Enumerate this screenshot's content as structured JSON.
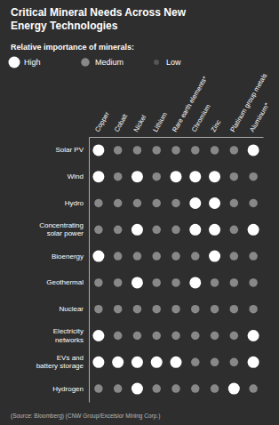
{
  "chart_data": {
    "type": "heatmap",
    "title": "Critical Mineral Needs Across New\nEnergy Technologies",
    "subtitle": "Relative importance of minerals:",
    "annotations": [
      "(Source: Bloomberg) (CNW Group/Excelsior Mining Corp.)"
    ],
    "x": [
      "Copper",
      "Cobalt",
      "Nickel",
      "Lithium",
      "Rare earth elements*",
      "Chromium",
      "Zinc",
      "Platinum group metals",
      "Aluminum*"
    ],
    "y": [
      "Solar PV",
      "Wind",
      "Hydro",
      "Concentrating\nsolar power",
      "Bioenergy",
      "Geothermal",
      "Nuclear",
      "Electricity\nnetworks",
      "EVs and\nbattery storage",
      "Hydrogen"
    ],
    "cells": [
      [
        2,
        1,
        1,
        1,
        1,
        1,
        1,
        1,
        2
      ],
      [
        2,
        1,
        2,
        1,
        2,
        2,
        2,
        1,
        1
      ],
      [
        1,
        1,
        1,
        1,
        1,
        2,
        2,
        1,
        1
      ],
      [
        1,
        1,
        2,
        1,
        1,
        2,
        2,
        1,
        2
      ],
      [
        2,
        1,
        1,
        1,
        1,
        1,
        2,
        1,
        1
      ],
      [
        1,
        1,
        2,
        1,
        1,
        2,
        1,
        1,
        1
      ],
      [
        1,
        1,
        1,
        1,
        1,
        1,
        1,
        1,
        1
      ],
      [
        2,
        1,
        1,
        1,
        1,
        1,
        1,
        1,
        2
      ],
      [
        2,
        2,
        2,
        2,
        2,
        1,
        1,
        1,
        2
      ],
      [
        1,
        1,
        2,
        1,
        1,
        1,
        1,
        2,
        1
      ]
    ],
    "levels": [
      {
        "value": 2,
        "label": "High",
        "color": "#ffffff"
      },
      {
        "value": 1,
        "label": "Medium",
        "color": "#888888"
      },
      {
        "value": 0,
        "label": "Low",
        "color": "#555555"
      }
    ]
  }
}
